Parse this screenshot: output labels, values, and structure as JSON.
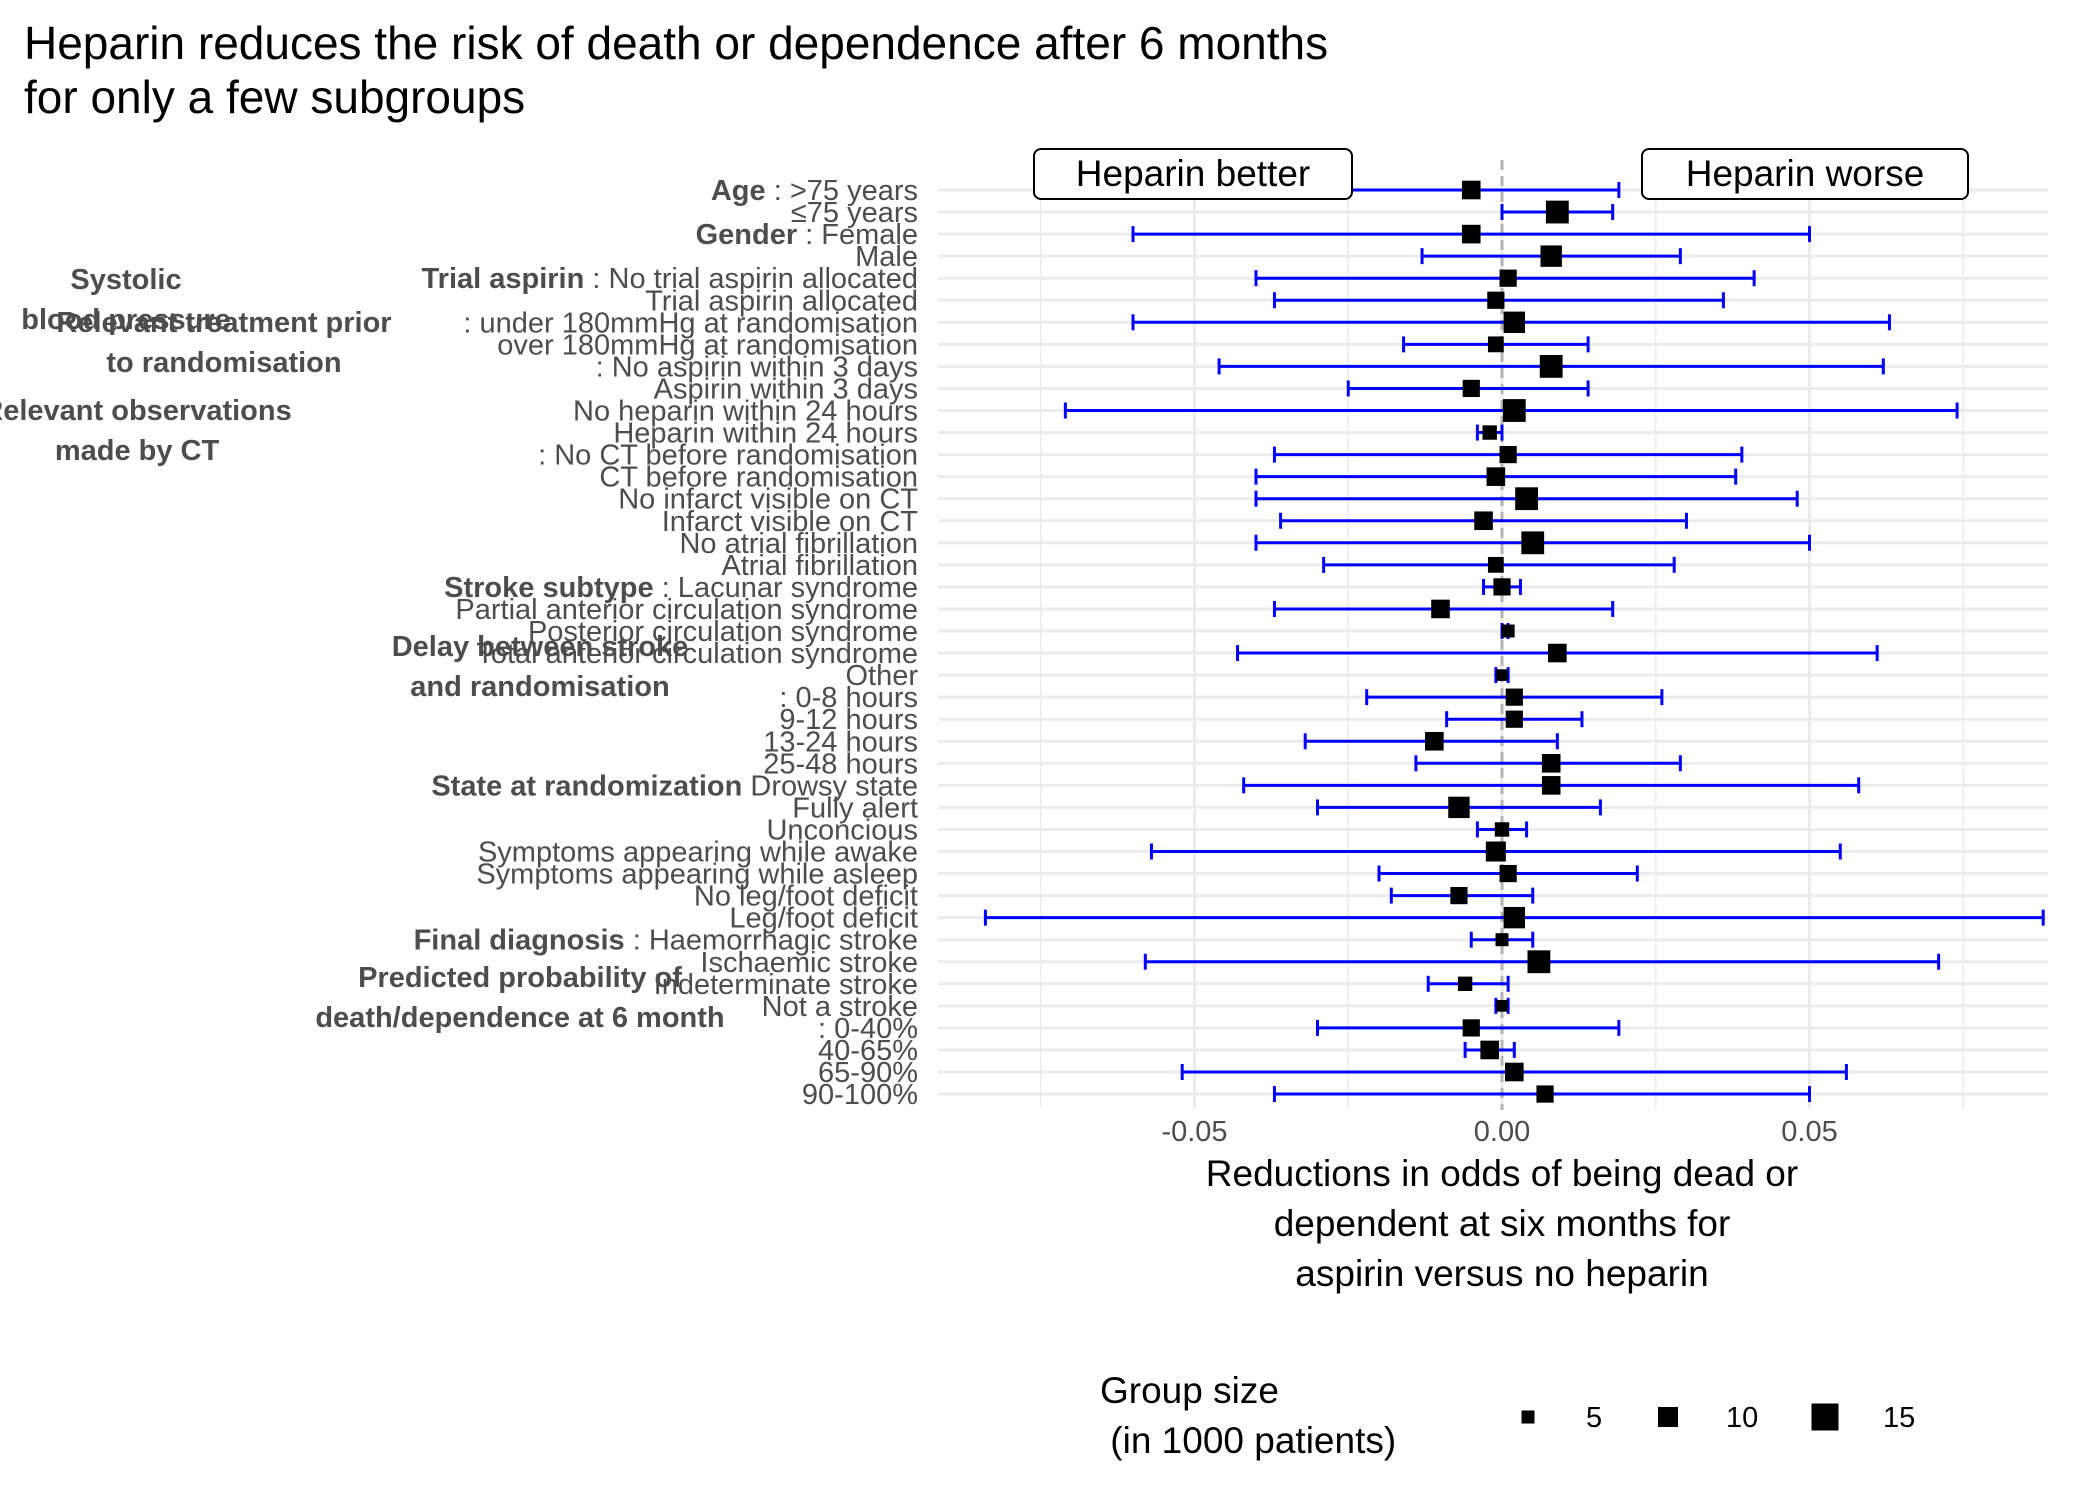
{
  "chart_data": {
    "type": "forest",
    "title": "Heparin reduces the risk of death or dependence after 6 months\n for only a few subgroups",
    "xlabel": "Reductions in odds of being dead or\ndependent at six months for\naspirin versus no heparin",
    "x_ticks": [
      "-0.05",
      "0.00",
      "0.05"
    ],
    "x_tick_values": [
      -0.05,
      0.0,
      0.05
    ],
    "xlim": [
      -0.092,
      0.092
    ],
    "reference_line": 0,
    "grid": true,
    "colors": {
      "errorbar": "#0000ff",
      "point": "#000000",
      "reference": "#b3b3b3",
      "grid": "#ebebeb"
    },
    "annotations": [
      {
        "text": "Heparin better",
        "side": "left"
      },
      {
        "text": "Heparin worse",
        "side": "right"
      }
    ],
    "group_labels": [
      {
        "lines": [
          "Systolic",
          "blood pressure"
        ]
      },
      {
        "lines": [
          "Relevant treatment prior",
          "to randomisation"
        ]
      },
      {
        "lines": [
          "Relevant observations",
          "made by CT"
        ]
      },
      {
        "lines": [
          "Delay between stroke",
          "and randomisation"
        ]
      },
      {
        "lines": [
          "Predicted probability of",
          "death/dependence at 6 month"
        ]
      }
    ],
    "rows": [
      {
        "group": "Age",
        "label": " : >75 years",
        "estimate": -0.005,
        "lower": -0.028,
        "upper": 0.019,
        "size": 9
      },
      {
        "group": "",
        "label": "≤75 years",
        "estimate": 0.009,
        "lower": 0.0,
        "upper": 0.018,
        "size": 12
      },
      {
        "group": "Gender",
        "label": " : Female",
        "estimate": -0.005,
        "lower": -0.06,
        "upper": 0.05,
        "size": 9
      },
      {
        "group": "",
        "label": "Male",
        "estimate": 0.008,
        "lower": -0.013,
        "upper": 0.029,
        "size": 11
      },
      {
        "group": "Trial aspirin",
        "label": " : No trial aspirin allocated",
        "estimate": 0.001,
        "lower": -0.04,
        "upper": 0.041,
        "size": 8
      },
      {
        "group": "",
        "label": "Trial aspirin allocated",
        "estimate": -0.001,
        "lower": -0.037,
        "upper": 0.036,
        "size": 8
      },
      {
        "group": "",
        "label": ": under 180mmHg at randomisation",
        "estimate": 0.002,
        "lower": -0.06,
        "upper": 0.063,
        "size": 11
      },
      {
        "group": "",
        "label": "over 180mmHg at randomisation",
        "estimate": -0.001,
        "lower": -0.016,
        "upper": 0.014,
        "size": 7
      },
      {
        "group": "",
        "label": ": No aspirin within 3 days",
        "estimate": 0.008,
        "lower": -0.046,
        "upper": 0.062,
        "size": 12
      },
      {
        "group": "",
        "label": "Aspirin within 3 days",
        "estimate": -0.005,
        "lower": -0.025,
        "upper": 0.014,
        "size": 8
      },
      {
        "group": "",
        "label": "No heparin within 24 hours",
        "estimate": 0.002,
        "lower": -0.071,
        "upper": 0.074,
        "size": 12
      },
      {
        "group": "",
        "label": "Heparin within 24 hours",
        "estimate": -0.002,
        "lower": -0.004,
        "upper": 0.0,
        "size": 6
      },
      {
        "group": "",
        "label": ": No CT before randomisation",
        "estimate": 0.001,
        "lower": -0.037,
        "upper": 0.039,
        "size": 8
      },
      {
        "group": "",
        "label": "CT before randomisation",
        "estimate": -0.001,
        "lower": -0.04,
        "upper": 0.038,
        "size": 9
      },
      {
        "group": "",
        "label": "No infarct visible on CT",
        "estimate": 0.004,
        "lower": -0.04,
        "upper": 0.048,
        "size": 12
      },
      {
        "group": "",
        "label": "Infarct visible on CT",
        "estimate": -0.003,
        "lower": -0.036,
        "upper": 0.03,
        "size": 9
      },
      {
        "group": "",
        "label": "No atrial fibrillation",
        "estimate": 0.005,
        "lower": -0.04,
        "upper": 0.05,
        "size": 12
      },
      {
        "group": "",
        "label": "Atrial fibrillation",
        "estimate": -0.001,
        "lower": -0.029,
        "upper": 0.028,
        "size": 7
      },
      {
        "group": "Stroke subtype",
        "label": " : Lacunar syndrome",
        "estimate": 0.0,
        "lower": -0.003,
        "upper": 0.003,
        "size": 8
      },
      {
        "group": "",
        "label": "Partial anterior circulation syndrome",
        "estimate": -0.01,
        "lower": -0.037,
        "upper": 0.018,
        "size": 9
      },
      {
        "group": "",
        "label": "Posterior circulation syndrome",
        "estimate": 0.001,
        "lower": 0.0,
        "upper": 0.001,
        "size": 5
      },
      {
        "group": "",
        "label": "Total anterior circulation syndrome",
        "estimate": 0.009,
        "lower": -0.043,
        "upper": 0.061,
        "size": 9
      },
      {
        "group": "",
        "label": "Other",
        "estimate": 0.0,
        "lower": -0.001,
        "upper": 0.001,
        "size": 4
      },
      {
        "group": "",
        "label": ": 0-8 hours",
        "estimate": 0.002,
        "lower": -0.022,
        "upper": 0.026,
        "size": 8
      },
      {
        "group": "",
        "label": "9-12 hours",
        "estimate": 0.002,
        "lower": -0.009,
        "upper": 0.013,
        "size": 8
      },
      {
        "group": "",
        "label": "13-24 hours",
        "estimate": -0.011,
        "lower": -0.032,
        "upper": 0.009,
        "size": 9
      },
      {
        "group": "",
        "label": "25-48 hours",
        "estimate": 0.008,
        "lower": -0.014,
        "upper": 0.029,
        "size": 9
      },
      {
        "group": "State at randomization",
        "label": " Drowsy state",
        "estimate": 0.008,
        "lower": -0.042,
        "upper": 0.058,
        "size": 9
      },
      {
        "group": "",
        "label": "Fully alert",
        "estimate": -0.007,
        "lower": -0.03,
        "upper": 0.016,
        "size": 11
      },
      {
        "group": "",
        "label": "Unconcious",
        "estimate": 0.0,
        "lower": -0.004,
        "upper": 0.004,
        "size": 6
      },
      {
        "group": "",
        "label": "Symptoms appearing while awake",
        "estimate": -0.001,
        "lower": -0.057,
        "upper": 0.055,
        "size": 10
      },
      {
        "group": "",
        "label": "Symptoms appearing while asleep",
        "estimate": 0.001,
        "lower": -0.02,
        "upper": 0.022,
        "size": 8
      },
      {
        "group": "",
        "label": "No leg/foot deficit",
        "estimate": -0.007,
        "lower": -0.018,
        "upper": 0.005,
        "size": 8
      },
      {
        "group": "",
        "label": "Leg/foot deficit",
        "estimate": 0.002,
        "lower": -0.084,
        "upper": 0.088,
        "size": 11
      },
      {
        "group": "Final diagnosis",
        "label": " : Haemorrhagic stroke",
        "estimate": 0.0,
        "lower": -0.005,
        "upper": 0.005,
        "size": 5
      },
      {
        "group": "",
        "label": "Ischaemic stroke",
        "estimate": 0.006,
        "lower": -0.058,
        "upper": 0.071,
        "size": 12
      },
      {
        "group": "",
        "label": "Indeterminate stroke",
        "estimate": -0.006,
        "lower": -0.012,
        "upper": 0.001,
        "size": 6
      },
      {
        "group": "",
        "label": "Not a stroke",
        "estimate": 0.0,
        "lower": -0.001,
        "upper": 0.001,
        "size": 4
      },
      {
        "group": "",
        "label": ": 0-40%",
        "estimate": -0.005,
        "lower": -0.03,
        "upper": 0.019,
        "size": 8
      },
      {
        "group": "",
        "label": "40-65%",
        "estimate": -0.002,
        "lower": -0.006,
        "upper": 0.002,
        "size": 9
      },
      {
        "group": "",
        "label": "65-90%",
        "estimate": 0.002,
        "lower": -0.052,
        "upper": 0.056,
        "size": 9
      },
      {
        "group": "",
        "label": "90-100%",
        "estimate": 0.007,
        "lower": -0.037,
        "upper": 0.05,
        "size": 8
      }
    ],
    "legend": {
      "title": "Group size\n (in 1000 patients)",
      "entries": [
        {
          "label": "5",
          "size": 5
        },
        {
          "label": "10",
          "size": 10
        },
        {
          "label": "15",
          "size": 15
        }
      ],
      "position": "bottom"
    }
  }
}
